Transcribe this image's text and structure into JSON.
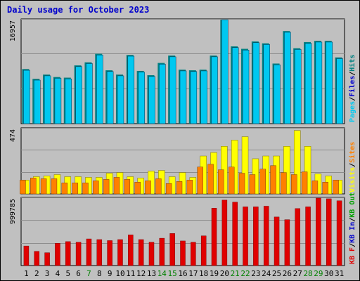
{
  "title": "Daily usage for October 2023",
  "colors": {
    "pages": "#00c8f0",
    "hits": "#008080",
    "files": "#0000cc",
    "visits": "#ffff00",
    "sites": "#ff8000",
    "kbf": "#e00000",
    "kbin": "#0000cc",
    "kbout": "#00a000",
    "weekend_day": "#008000",
    "weekday": "#000000",
    "grid": "#8c8c8c",
    "panel_bg": "#c0c0c0"
  },
  "chart_data": [
    {
      "type": "bar",
      "panel": "pages-files-hits",
      "ymax_label": "16957",
      "ylim": [
        0,
        16957
      ],
      "categories": [
        "1",
        "2",
        "3",
        "4",
        "5",
        "6",
        "7",
        "8",
        "9",
        "10",
        "11",
        "12",
        "13",
        "14",
        "15",
        "16",
        "17",
        "18",
        "19",
        "20",
        "21",
        "22",
        "23",
        "24",
        "25",
        "26",
        "27",
        "28",
        "29",
        "30",
        "31"
      ],
      "legend": [
        {
          "name": "Pages",
          "color": "#00c8f0"
        },
        {
          "name": "Files",
          "color": "#0000cc"
        },
        {
          "name": "Hits",
          "color": "#008080"
        }
      ],
      "series": [
        {
          "name": "Hits",
          "values": [
            8900,
            7300,
            8000,
            7600,
            7500,
            9500,
            10000,
            11400,
            8700,
            8000,
            11200,
            8600,
            7900,
            9900,
            11100,
            8800,
            8700,
            8800,
            11100,
            17500,
            12600,
            12200,
            13400,
            13100,
            9800,
            15100,
            12300,
            13300,
            13500,
            13500,
            10800
          ]
        },
        {
          "name": "Pages",
          "values": [
            8700,
            7100,
            7800,
            7400,
            7300,
            9300,
            9800,
            11200,
            8500,
            7800,
            11000,
            8400,
            7700,
            9700,
            10900,
            8600,
            8500,
            8600,
            10900,
            17300,
            12400,
            12000,
            13200,
            12900,
            9600,
            14900,
            12100,
            13100,
            13300,
            13300,
            10600
          ]
        }
      ]
    },
    {
      "type": "bar",
      "panel": "visits-sites",
      "ymax_label": "474",
      "ylim": [
        0,
        474
      ],
      "categories": [
        "1",
        "2",
        "3",
        "4",
        "5",
        "6",
        "7",
        "8",
        "9",
        "10",
        "11",
        "12",
        "13",
        "14",
        "15",
        "16",
        "17",
        "18",
        "19",
        "20",
        "21",
        "22",
        "23",
        "24",
        "25",
        "26",
        "27",
        "28",
        "29",
        "30",
        "31"
      ],
      "legend": [
        {
          "name": "Visits",
          "color": "#ffff00"
        },
        {
          "name": "Sites",
          "color": "#ff8000"
        }
      ],
      "series": [
        {
          "name": "Visits",
          "values": [
            100,
            125,
            130,
            140,
            125,
            125,
            120,
            120,
            150,
            155,
            125,
            115,
            165,
            170,
            125,
            155,
            120,
            275,
            300,
            345,
            390,
            415,
            255,
            275,
            275,
            345,
            460,
            345,
            145,
            130,
            100
          ]
        },
        {
          "name": "Sites",
          "values": [
            100,
            115,
            110,
            110,
            80,
            80,
            80,
            95,
            105,
            120,
            105,
            85,
            95,
            110,
            75,
            90,
            100,
            195,
            215,
            175,
            195,
            150,
            140,
            180,
            205,
            155,
            140,
            160,
            95,
            85,
            100
          ]
        }
      ]
    },
    {
      "type": "bar",
      "panel": "kb-f-in-out",
      "ymax_label": "999785",
      "ylim": [
        0,
        999785
      ],
      "categories": [
        "1",
        "2",
        "3",
        "4",
        "5",
        "6",
        "7",
        "8",
        "9",
        "10",
        "11",
        "12",
        "13",
        "14",
        "15",
        "16",
        "17",
        "18",
        "19",
        "20",
        "21",
        "22",
        "23",
        "24",
        "25",
        "26",
        "27",
        "28",
        "29",
        "30",
        "31"
      ],
      "legend": [
        {
          "name": "KB F",
          "color": "#e00000"
        },
        {
          "name": "KB In",
          "color": "#0000cc"
        },
        {
          "name": "KB Out",
          "color": "#00a000"
        }
      ],
      "series": [
        {
          "name": "KB F",
          "values": [
            290000,
            210000,
            190000,
            330000,
            355000,
            345000,
            395000,
            385000,
            370000,
            385000,
            455000,
            385000,
            345000,
            405000,
            475000,
            365000,
            345000,
            440000,
            850000,
            970000,
            940000,
            870000,
            870000,
            880000,
            720000,
            680000,
            845000,
            870000,
            1000000,
            990000,
            960000
          ]
        }
      ]
    }
  ],
  "day_colors": [
    "weekday",
    "weekday",
    "weekday",
    "weekday",
    "weekday",
    "weekday",
    "weekend_day",
    "weekday",
    "weekday",
    "weekday",
    "weekday",
    "weekday",
    "weekday",
    "weekend_day",
    "weekend_day",
    "weekday",
    "weekday",
    "weekday",
    "weekday",
    "weekday",
    "weekend_day",
    "weekend_day",
    "weekday",
    "weekday",
    "weekday",
    "weekday",
    "weekday",
    "weekend_day",
    "weekend_day",
    "weekday",
    "weekday"
  ]
}
